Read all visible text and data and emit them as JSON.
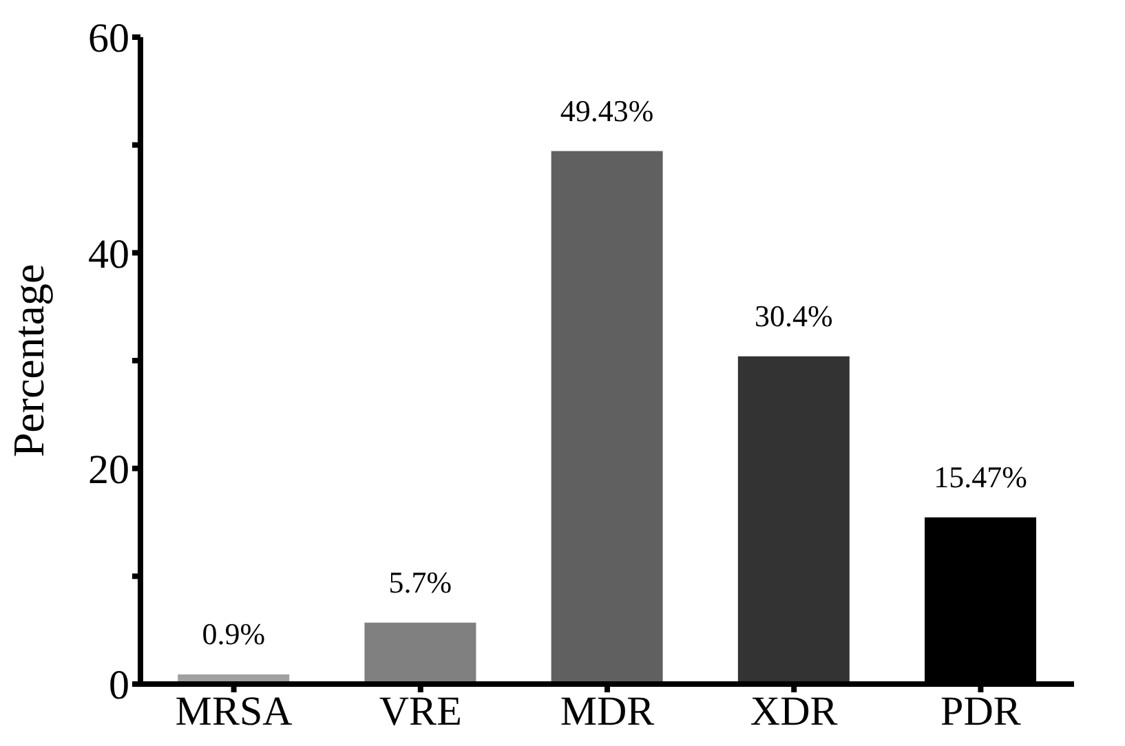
{
  "chart_data": {
    "type": "bar",
    "ylabel": "Percentage",
    "categories": [
      "MRSA",
      "VRE",
      "MDR",
      "XDR",
      "PDR"
    ],
    "values": [
      0.9,
      5.7,
      49.43,
      30.4,
      15.47
    ],
    "colors": [
      "#a0a0a0",
      "#808080",
      "#606060",
      "#333333",
      "#000000"
    ],
    "value_labels": [
      "0.9%",
      "5.7%",
      "49.43%",
      "30.4%",
      "15.47%"
    ],
    "ylim": [
      0,
      60
    ],
    "yticks": [
      0,
      {
        "value": 10,
        "label": null
      },
      20,
      {
        "value": 30,
        "label": null
      },
      40,
      {
        "value": 50,
        "label": null
      },
      60
    ],
    "grid": false,
    "legend": false
  }
}
